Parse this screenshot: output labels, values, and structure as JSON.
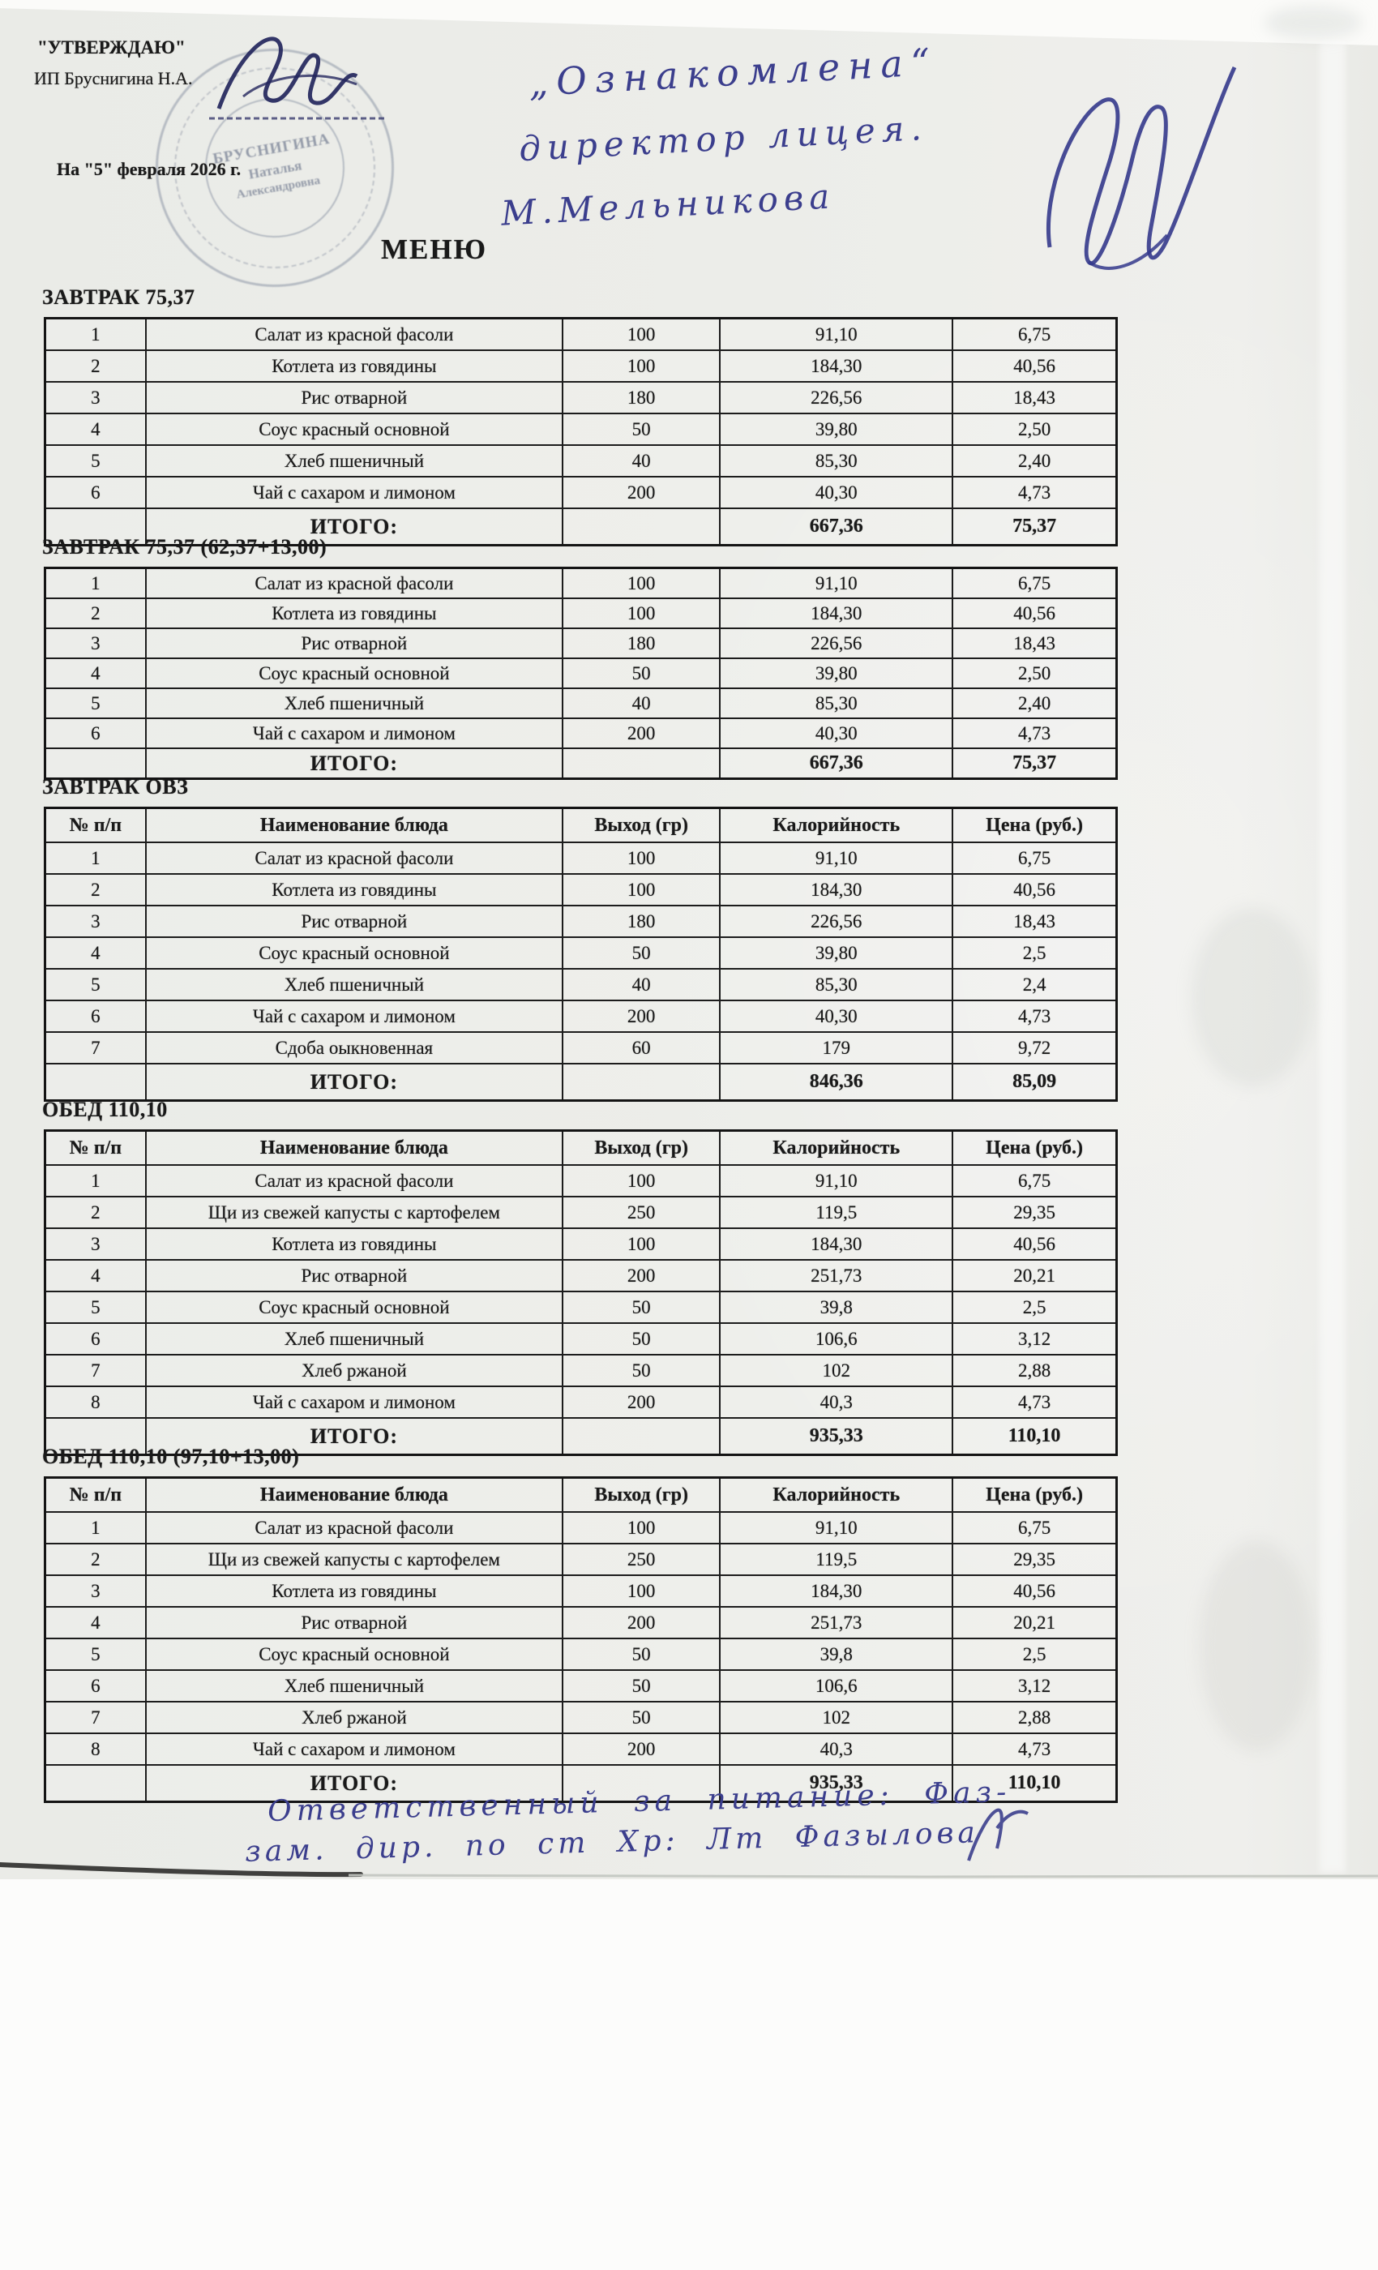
{
  "header": {
    "approve_label": "\"УТВЕРЖДАЮ\"",
    "approver": "ИП Бруснигина Н.А.",
    "date_line": "На \"5\" февраля 2026 г.",
    "doc_title": "МЕНЮ",
    "stamp": {
      "line1": "БРУСНИГИНА",
      "line2": "Наталья",
      "line3": "Александровна"
    },
    "handwritten_note": {
      "line1": "„Ознакомлена“",
      "line2": "директор лицея.",
      "line3": "М.Мельникова"
    }
  },
  "columns": [
    "№ п/п",
    "Наименование блюда",
    "Выход (гр)",
    "Калорийность",
    "Цена (руб.)"
  ],
  "total_label": "ИТОГО:",
  "sections": [
    {
      "title": "ЗАВТРАК 75,37",
      "show_header": false,
      "rows": [
        [
          "1",
          "Салат из красной фасоли",
          "100",
          "91,10",
          "6,75"
        ],
        [
          "2",
          "Котлета из говядины",
          "100",
          "184,30",
          "40,56"
        ],
        [
          "3",
          "Рис отварной",
          "180",
          "226,56",
          "18,43"
        ],
        [
          "4",
          "Соус красный основной",
          "50",
          "39,80",
          "2,50"
        ],
        [
          "5",
          "Хлеб пшеничный",
          "40",
          "85,30",
          "2,40"
        ],
        [
          "6",
          "Чай с сахаром и лимоном",
          "200",
          "40,30",
          "4,73"
        ]
      ],
      "total_calories": "667,36",
      "total_price": "75,37"
    },
    {
      "title": "ЗАВТРАК 75,37 (62,37+13,00)",
      "show_header": false,
      "rows": [
        [
          "1",
          "Салат из красной фасоли",
          "100",
          "91,10",
          "6,75"
        ],
        [
          "2",
          "Котлета из говядины",
          "100",
          "184,30",
          "40,56"
        ],
        [
          "3",
          "Рис отварной",
          "180",
          "226,56",
          "18,43"
        ],
        [
          "4",
          "Соус красный основной",
          "50",
          "39,80",
          "2,50"
        ],
        [
          "5",
          "Хлеб пшеничный",
          "40",
          "85,30",
          "2,40"
        ],
        [
          "6",
          "Чай с сахаром и лимоном",
          "200",
          "40,30",
          "4,73"
        ]
      ],
      "total_calories": "667,36",
      "total_price": "75,37"
    },
    {
      "title": "ЗАВТРАК ОВЗ",
      "show_header": true,
      "rows": [
        [
          "1",
          "Салат из красной фасоли",
          "100",
          "91,10",
          "6,75"
        ],
        [
          "2",
          "Котлета из говядины",
          "100",
          "184,30",
          "40,56"
        ],
        [
          "3",
          "Рис отварной",
          "180",
          "226,56",
          "18,43"
        ],
        [
          "4",
          "Соус красный основной",
          "50",
          "39,80",
          "2,5"
        ],
        [
          "5",
          "Хлеб пшеничный",
          "40",
          "85,30",
          "2,4"
        ],
        [
          "6",
          "Чай с сахаром и лимоном",
          "200",
          "40,30",
          "4,73"
        ],
        [
          "7",
          "Сдоба оыкновенная",
          "60",
          "179",
          "9,72"
        ]
      ],
      "total_calories": "846,36",
      "total_price": "85,09"
    },
    {
      "title": "ОБЕД 110,10",
      "show_header": true,
      "rows": [
        [
          "1",
          "Салат из красной фасоли",
          "100",
          "91,10",
          "6,75"
        ],
        [
          "2",
          "Щи из свежей капусты с картофелем",
          "250",
          "119,5",
          "29,35"
        ],
        [
          "3",
          "Котлета из говядины",
          "100",
          "184,30",
          "40,56"
        ],
        [
          "4",
          "Рис отварной",
          "200",
          "251,73",
          "20,21"
        ],
        [
          "5",
          "Соус красный основной",
          "50",
          "39,8",
          "2,5"
        ],
        [
          "6",
          "Хлеб пшеничный",
          "50",
          "106,6",
          "3,12"
        ],
        [
          "7",
          "Хлеб ржаной",
          "50",
          "102",
          "2,88"
        ],
        [
          "8",
          "Чай с сахаром и лимоном",
          "200",
          "40,3",
          "4,73"
        ]
      ],
      "total_calories": "935,33",
      "total_price": "110,10"
    },
    {
      "title": "ОБЕД 110,10 (97,10+13,00)",
      "show_header": true,
      "rows": [
        [
          "1",
          "Салат из красной фасоли",
          "100",
          "91,10",
          "6,75"
        ],
        [
          "2",
          "Щи из свежей капусты с картофелем",
          "250",
          "119,5",
          "29,35"
        ],
        [
          "3",
          "Котлета из говядины",
          "100",
          "184,30",
          "40,56"
        ],
        [
          "4",
          "Рис отварной",
          "200",
          "251,73",
          "20,21"
        ],
        [
          "5",
          "Соус красный основной",
          "50",
          "39,8",
          "2,5"
        ],
        [
          "6",
          "Хлеб пшеничный",
          "50",
          "106,6",
          "3,12"
        ],
        [
          "7",
          "Хлеб ржаной",
          "50",
          "102",
          "2,88"
        ],
        [
          "8",
          "Чай с сахаром и лимоном",
          "200",
          "40,3",
          "4,73"
        ]
      ],
      "total_calories": "935,33",
      "total_price": "110,10"
    }
  ],
  "footer_note": {
    "line1": "Ответственный за питание: Фаз-",
    "line2": "зам. дир. по ст Хр: Лт Фазылова"
  },
  "colors": {
    "ink": "#191919",
    "handwriting_ink": "#3b3e8d",
    "stamp": "#7c869a",
    "paper": "#ecede9"
  }
}
